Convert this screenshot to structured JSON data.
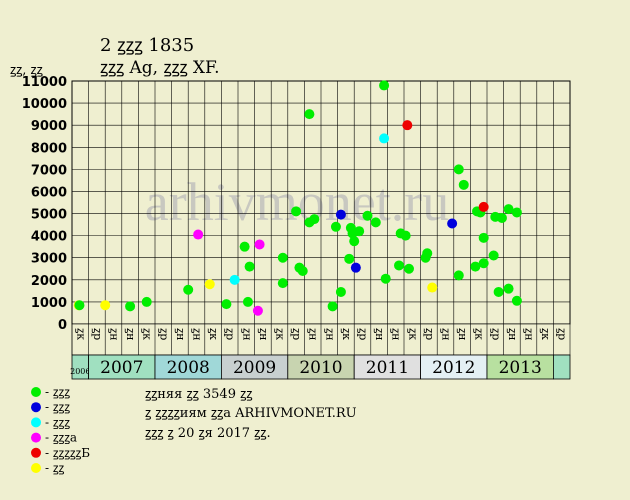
{
  "header": {
    "title_line1": "2 ꙁꙁꙁ 1835",
    "title_line2": "ꙁꙁꙁ Ag, ꙁꙁꙁ XF.",
    "y_unit": "ꙁꙁ, ꙁꙁ"
  },
  "footer": {
    "line1": "ꙁꙁняя ꙁꙁ 3549 ꙁꙁ",
    "line2": "ꙁ ꙁꙁꙁꙁиям ꙁꙁа ARHIVMONET.RU",
    "line3": "ꙁꙁꙁ ꙁ 20 ꙁя 2017 ꙁꙁ."
  },
  "watermark": "arhivmonet.ru",
  "chart_data": {
    "type": "scatter",
    "title": "2 ꙁꙁꙁ 1835",
    "subtitle": "ꙁꙁꙁ Ag, ꙁꙁꙁ XF.",
    "ylabel": "ꙁꙁ, ꙁꙁ",
    "ylim": [
      0,
      11000
    ],
    "yticks": [
      0,
      1000,
      2000,
      3000,
      4000,
      5000,
      6000,
      7000,
      8000,
      9000,
      10000,
      11000
    ],
    "grid": true,
    "x_slots": 30,
    "x_tick_labels": [
      "ꙁк",
      "ꙁр",
      "ꙁн",
      "ꙁн",
      "ꙁк",
      "ꙁр",
      "ꙁн",
      "ꙁн",
      "ꙁк",
      "ꙁр",
      "ꙁн",
      "ꙁн",
      "ꙁк",
      "ꙁр",
      "ꙁн",
      "ꙁн",
      "ꙁк",
      "ꙁр",
      "ꙁн",
      "ꙁн",
      "ꙁк",
      "ꙁр",
      "ꙁн",
      "ꙁн",
      "ꙁк",
      "ꙁр",
      "ꙁн",
      "ꙁн",
      "ꙁк",
      "ꙁр"
    ],
    "years": [
      {
        "label": "2006",
        "start": 0,
        "end": 1,
        "color": "#a0e0c0",
        "small": true
      },
      {
        "label": "2007",
        "start": 1,
        "end": 5,
        "color": "#a0e0c0",
        "small": false
      },
      {
        "label": "2008",
        "start": 5,
        "end": 9,
        "color": "#a0d8d8",
        "small": false
      },
      {
        "label": "2009",
        "start": 9,
        "end": 13,
        "color": "#c8d0d0",
        "small": false
      },
      {
        "label": "2010",
        "start": 13,
        "end": 17,
        "color": "#c8d4b0",
        "small": false
      },
      {
        "label": "2011",
        "start": 17,
        "end": 21,
        "color": "#e0e0e0",
        "small": false
      },
      {
        "label": "2012",
        "start": 21,
        "end": 25,
        "color": "#e4f0f4",
        "small": false
      },
      {
        "label": "2013",
        "start": 25,
        "end": 29,
        "color": "#b8e0a0",
        "small": false
      },
      {
        "label": "",
        "start": 29,
        "end": 30,
        "color": "#a0e0c0",
        "small": false
      }
    ],
    "legend": [
      {
        "label": "- ꙁꙁꙁ",
        "color": "#00ee00"
      },
      {
        "label": "- ꙁꙁꙁ",
        "color": "#0000dd"
      },
      {
        "label": "- ꙁꙁꙁ",
        "color": "#00ffff"
      },
      {
        "label": "- ꙁꙁꙁа",
        "color": "#ff00ff"
      },
      {
        "label": "- ꙁꙁꙁꙁꙁБ",
        "color": "#ee0000"
      },
      {
        "label": "- ꙁꙁ",
        "color": "#ffff00"
      }
    ],
    "points": [
      {
        "x": 0.4,
        "y": 850,
        "c": 5
      },
      {
        "x": 0.45,
        "y": 850,
        "c": 0
      },
      {
        "x": 2.0,
        "y": 850,
        "c": 5
      },
      {
        "x": 3.5,
        "y": 800,
        "c": 0
      },
      {
        "x": 4.5,
        "y": 1000,
        "c": 0
      },
      {
        "x": 7.0,
        "y": 1550,
        "c": 0
      },
      {
        "x": 7.6,
        "y": 4050,
        "c": 3
      },
      {
        "x": 8.3,
        "y": 1800,
        "c": 5
      },
      {
        "x": 9.3,
        "y": 900,
        "c": 0
      },
      {
        "x": 9.8,
        "y": 2000,
        "c": 2
      },
      {
        "x": 10.4,
        "y": 3500,
        "c": 0
      },
      {
        "x": 10.6,
        "y": 1000,
        "c": 0
      },
      {
        "x": 10.7,
        "y": 2600,
        "c": 0
      },
      {
        "x": 11.2,
        "y": 600,
        "c": 3
      },
      {
        "x": 11.3,
        "y": 3600,
        "c": 3
      },
      {
        "x": 12.7,
        "y": 3000,
        "c": 0
      },
      {
        "x": 12.7,
        "y": 1850,
        "c": 0
      },
      {
        "x": 13.5,
        "y": 5100,
        "c": 0
      },
      {
        "x": 13.7,
        "y": 2550,
        "c": 0
      },
      {
        "x": 13.9,
        "y": 2400,
        "c": 0
      },
      {
        "x": 14.3,
        "y": 4600,
        "c": 0
      },
      {
        "x": 14.3,
        "y": 9500,
        "c": 0
      },
      {
        "x": 14.6,
        "y": 4750,
        "c": 0
      },
      {
        "x": 15.7,
        "y": 800,
        "c": 0
      },
      {
        "x": 15.9,
        "y": 4400,
        "c": 0
      },
      {
        "x": 16.2,
        "y": 4950,
        "c": 1
      },
      {
        "x": 16.2,
        "y": 1450,
        "c": 0
      },
      {
        "x": 16.7,
        "y": 2950,
        "c": 0
      },
      {
        "x": 16.8,
        "y": 4350,
        "c": 0
      },
      {
        "x": 16.9,
        "y": 4100,
        "c": 0
      },
      {
        "x": 17.0,
        "y": 3750,
        "c": 0
      },
      {
        "x": 17.1,
        "y": 2550,
        "c": 1
      },
      {
        "x": 17.3,
        "y": 4200,
        "c": 0
      },
      {
        "x": 17.8,
        "y": 4900,
        "c": 0
      },
      {
        "x": 18.3,
        "y": 4600,
        "c": 0
      },
      {
        "x": 18.8,
        "y": 10800,
        "c": 0
      },
      {
        "x": 18.8,
        "y": 8400,
        "c": 2
      },
      {
        "x": 18.9,
        "y": 2050,
        "c": 0
      },
      {
        "x": 19.7,
        "y": 2650,
        "c": 0
      },
      {
        "x": 19.8,
        "y": 4100,
        "c": 0
      },
      {
        "x": 20.1,
        "y": 4000,
        "c": 0
      },
      {
        "x": 20.2,
        "y": 9000,
        "c": 4
      },
      {
        "x": 20.3,
        "y": 2500,
        "c": 0
      },
      {
        "x": 21.3,
        "y": 3000,
        "c": 0
      },
      {
        "x": 21.4,
        "y": 3200,
        "c": 0
      },
      {
        "x": 21.7,
        "y": 1650,
        "c": 5
      },
      {
        "x": 22.9,
        "y": 4550,
        "c": 1
      },
      {
        "x": 23.3,
        "y": 7000,
        "c": 0
      },
      {
        "x": 23.3,
        "y": 2200,
        "c": 0
      },
      {
        "x": 23.6,
        "y": 6300,
        "c": 0
      },
      {
        "x": 24.3,
        "y": 2600,
        "c": 0
      },
      {
        "x": 24.4,
        "y": 5100,
        "c": 0
      },
      {
        "x": 24.6,
        "y": 5050,
        "c": 0
      },
      {
        "x": 24.8,
        "y": 5300,
        "c": 4
      },
      {
        "x": 24.8,
        "y": 3900,
        "c": 0
      },
      {
        "x": 24.8,
        "y": 2750,
        "c": 0
      },
      {
        "x": 25.4,
        "y": 3100,
        "c": 0
      },
      {
        "x": 25.5,
        "y": 4850,
        "c": 0
      },
      {
        "x": 25.7,
        "y": 1450,
        "c": 0
      },
      {
        "x": 25.9,
        "y": 4800,
        "c": 0
      },
      {
        "x": 26.3,
        "y": 5200,
        "c": 0
      },
      {
        "x": 26.3,
        "y": 1600,
        "c": 0
      },
      {
        "x": 26.8,
        "y": 5050,
        "c": 0
      },
      {
        "x": 26.8,
        "y": 1050,
        "c": 0
      }
    ]
  }
}
